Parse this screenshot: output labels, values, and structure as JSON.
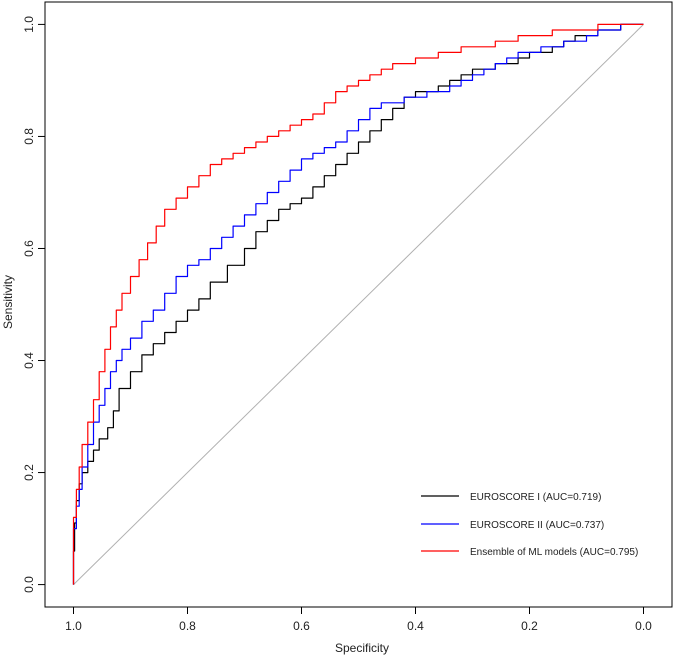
{
  "chart_data": {
    "type": "line",
    "title": "",
    "xlabel": "Specificity",
    "ylabel": "Sensitivity",
    "x_reversed": true,
    "xlim": [
      1.05,
      -0.05
    ],
    "ylim": [
      -0.04,
      1.04
    ],
    "x_ticks": [
      1.0,
      0.8,
      0.6,
      0.4,
      0.2,
      0.0
    ],
    "x_tick_labels": [
      "1.0",
      "0.8",
      "0.6",
      "0.4",
      "0.2",
      "0.0"
    ],
    "y_ticks": [
      0.0,
      0.2,
      0.4,
      0.6,
      0.8,
      1.0
    ],
    "y_tick_labels": [
      "0.0",
      "0.2",
      "0.4",
      "0.6",
      "0.8",
      "1.0"
    ],
    "grid": false,
    "legend_position": "bottom-right",
    "reference_line": {
      "name": "chance diagonal",
      "color": "#b0b0b0",
      "x": [
        1.0,
        0.0
      ],
      "y": [
        0.0,
        1.0
      ]
    },
    "series": [
      {
        "name": "EUROSCORE I (AUC=0.719)",
        "color": "#000000",
        "x": [
          1.0,
          0.998,
          0.995,
          0.99,
          0.985,
          0.975,
          0.965,
          0.955,
          0.94,
          0.93,
          0.92,
          0.9,
          0.88,
          0.86,
          0.84,
          0.82,
          0.8,
          0.78,
          0.76,
          0.73,
          0.7,
          0.68,
          0.66,
          0.64,
          0.62,
          0.6,
          0.58,
          0.56,
          0.54,
          0.52,
          0.5,
          0.48,
          0.46,
          0.44,
          0.42,
          0.4,
          0.38,
          0.36,
          0.34,
          0.32,
          0.3,
          0.28,
          0.26,
          0.24,
          0.22,
          0.2,
          0.18,
          0.16,
          0.14,
          0.12,
          0.1,
          0.08,
          0.06,
          0.04,
          0.02,
          0.0
        ],
        "y": [
          0.0,
          0.06,
          0.11,
          0.15,
          0.18,
          0.2,
          0.22,
          0.24,
          0.26,
          0.28,
          0.31,
          0.35,
          0.38,
          0.41,
          0.43,
          0.45,
          0.47,
          0.49,
          0.51,
          0.54,
          0.57,
          0.6,
          0.63,
          0.65,
          0.67,
          0.68,
          0.69,
          0.71,
          0.73,
          0.75,
          0.77,
          0.79,
          0.81,
          0.83,
          0.85,
          0.87,
          0.88,
          0.88,
          0.89,
          0.9,
          0.91,
          0.92,
          0.92,
          0.93,
          0.93,
          0.94,
          0.95,
          0.95,
          0.96,
          0.97,
          0.98,
          0.98,
          0.99,
          0.99,
          1.0,
          1.0
        ]
      },
      {
        "name": "EUROSCORE II (AUC=0.737)",
        "color": "#0000ff",
        "x": [
          1.0,
          0.995,
          0.99,
          0.985,
          0.975,
          0.965,
          0.955,
          0.945,
          0.935,
          0.925,
          0.915,
          0.9,
          0.88,
          0.86,
          0.84,
          0.82,
          0.8,
          0.78,
          0.76,
          0.74,
          0.72,
          0.7,
          0.68,
          0.66,
          0.64,
          0.62,
          0.6,
          0.58,
          0.56,
          0.54,
          0.52,
          0.5,
          0.48,
          0.46,
          0.44,
          0.42,
          0.4,
          0.38,
          0.36,
          0.34,
          0.32,
          0.3,
          0.28,
          0.26,
          0.24,
          0.22,
          0.2,
          0.18,
          0.16,
          0.14,
          0.12,
          0.1,
          0.08,
          0.06,
          0.04,
          0.02,
          0.0
        ],
        "y": [
          0.0,
          0.1,
          0.14,
          0.17,
          0.21,
          0.25,
          0.29,
          0.32,
          0.35,
          0.38,
          0.4,
          0.42,
          0.44,
          0.47,
          0.49,
          0.52,
          0.55,
          0.57,
          0.58,
          0.6,
          0.62,
          0.64,
          0.66,
          0.68,
          0.7,
          0.72,
          0.74,
          0.76,
          0.77,
          0.78,
          0.79,
          0.81,
          0.83,
          0.85,
          0.86,
          0.86,
          0.87,
          0.87,
          0.88,
          0.88,
          0.89,
          0.9,
          0.91,
          0.92,
          0.93,
          0.94,
          0.95,
          0.95,
          0.96,
          0.96,
          0.97,
          0.97,
          0.98,
          0.99,
          0.99,
          1.0,
          1.0
        ]
      },
      {
        "name": "Ensemble of ML models (AUC=0.795)",
        "color": "#ff0000",
        "x": [
          1.0,
          0.995,
          0.99,
          0.985,
          0.975,
          0.965,
          0.955,
          0.945,
          0.935,
          0.925,
          0.915,
          0.9,
          0.885,
          0.87,
          0.855,
          0.84,
          0.82,
          0.8,
          0.78,
          0.76,
          0.74,
          0.72,
          0.7,
          0.68,
          0.66,
          0.64,
          0.62,
          0.6,
          0.58,
          0.56,
          0.54,
          0.52,
          0.5,
          0.48,
          0.46,
          0.44,
          0.42,
          0.4,
          0.38,
          0.36,
          0.34,
          0.32,
          0.3,
          0.28,
          0.26,
          0.24,
          0.22,
          0.2,
          0.18,
          0.16,
          0.14,
          0.12,
          0.1,
          0.08,
          0.06,
          0.04,
          0.02,
          0.0
        ],
        "y": [
          0.0,
          0.12,
          0.17,
          0.21,
          0.25,
          0.29,
          0.33,
          0.38,
          0.42,
          0.46,
          0.49,
          0.52,
          0.55,
          0.58,
          0.61,
          0.64,
          0.67,
          0.69,
          0.71,
          0.73,
          0.75,
          0.76,
          0.77,
          0.78,
          0.79,
          0.8,
          0.81,
          0.82,
          0.83,
          0.84,
          0.86,
          0.88,
          0.89,
          0.9,
          0.91,
          0.92,
          0.93,
          0.93,
          0.94,
          0.94,
          0.95,
          0.95,
          0.96,
          0.96,
          0.96,
          0.97,
          0.97,
          0.98,
          0.98,
          0.98,
          0.99,
          0.99,
          0.99,
          0.99,
          1.0,
          1.0,
          1.0,
          1.0
        ]
      }
    ]
  }
}
